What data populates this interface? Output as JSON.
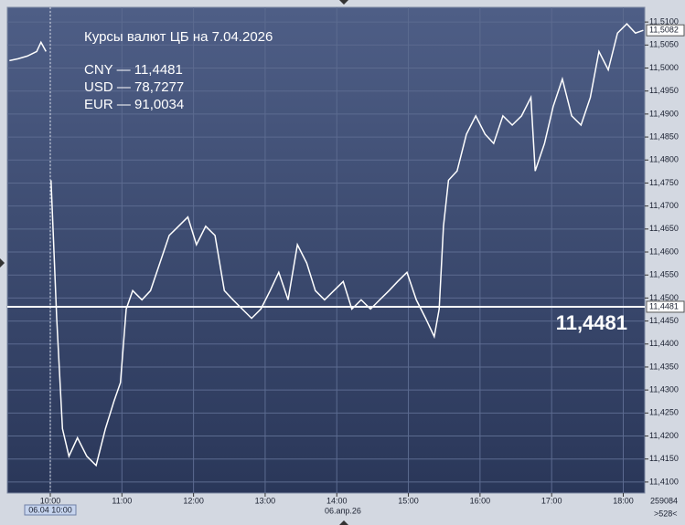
{
  "chart_data": {
    "type": "line",
    "notes": [
      "Курсы валют ЦБ на 7.04.2026",
      "CNY — 11,4481",
      "USD — 78,7277",
      "EUR — 91,0034"
    ],
    "x": [
      9.43,
      9.55,
      9.68,
      9.81,
      9.87,
      9.94,
      9.97,
      10.01,
      10.09,
      10.17,
      10.26,
      10.38,
      10.51,
      10.64,
      10.77,
      10.89,
      10.98,
      11.06,
      11.15,
      11.28,
      11.4,
      11.53,
      11.66,
      11.79,
      11.92,
      12.04,
      12.17,
      12.3,
      12.43,
      12.55,
      12.68,
      12.81,
      12.94,
      13.07,
      13.19,
      13.32,
      13.45,
      13.58,
      13.7,
      13.83,
      13.96,
      14.09,
      14.21,
      14.34,
      14.47,
      14.6,
      14.73,
      14.85,
      14.98,
      15.11,
      15.24,
      15.36,
      15.43,
      15.49,
      15.56,
      15.68,
      15.81,
      15.94,
      16.07,
      16.19,
      16.32,
      16.45,
      16.58,
      16.71,
      16.77,
      16.9,
      17.02,
      17.15,
      17.28,
      17.41,
      17.54,
      17.66,
      17.79,
      17.92,
      18.05,
      18.17,
      18.28
    ],
    "series": [
      {
        "color": "#ffffff",
        "values": [
          11.5016,
          11.502,
          11.5026,
          11.5036,
          11.5056,
          11.5036,
          null,
          11.4756,
          11.4456,
          11.4216,
          11.4156,
          11.4196,
          11.4156,
          11.4136,
          11.4216,
          11.4276,
          11.4316,
          11.4476,
          11.4516,
          11.4496,
          11.4516,
          11.4576,
          11.4636,
          11.4656,
          11.4676,
          11.4616,
          11.4656,
          11.4636,
          11.4516,
          11.4496,
          11.4476,
          11.4456,
          11.4476,
          11.4516,
          11.4556,
          11.4496,
          11.4616,
          11.4576,
          11.4516,
          11.4496,
          11.4516,
          11.4536,
          11.4476,
          11.4496,
          11.4476,
          11.4496,
          11.4516,
          11.4536,
          11.4556,
          11.4496,
          11.4456,
          11.4416,
          11.4476,
          11.4656,
          11.4756,
          11.4776,
          11.4856,
          11.4896,
          11.4856,
          11.4836,
          11.4896,
          11.4876,
          11.4896,
          11.4936,
          11.4776,
          11.4836,
          11.4916,
          11.4976,
          11.4896,
          11.4876,
          11.4936,
          11.5036,
          11.4996,
          11.5076,
          11.5096,
          11.5076,
          11.5082
        ]
      }
    ],
    "xlim": [
      9.4,
      18.3
    ],
    "xticks": [
      {
        "value": 10,
        "label": "10:00"
      },
      {
        "value": 11,
        "label": "11:00"
      },
      {
        "value": 12,
        "label": "12:00"
      },
      {
        "value": 13,
        "label": "13:00"
      },
      {
        "value": 14,
        "label": "14:00"
      },
      {
        "value": 15,
        "label": "15:00"
      },
      {
        "value": 16,
        "label": "16:00"
      },
      {
        "value": 17,
        "label": "17:00"
      },
      {
        "value": 18,
        "label": "18:00"
      }
    ],
    "ylim": [
      11.4076,
      11.5132
    ],
    "yticks": [
      {
        "value": 11.41,
        "label": "11,4100"
      },
      {
        "value": 11.415,
        "label": "11,4150"
      },
      {
        "value": 11.42,
        "label": "11,4200"
      },
      {
        "value": 11.425,
        "label": "11,4250"
      },
      {
        "value": 11.43,
        "label": "11,4300"
      },
      {
        "value": 11.435,
        "label": "11,4350"
      },
      {
        "value": 11.44,
        "label": "11,4400"
      },
      {
        "value": 11.445,
        "label": "11,4450"
      },
      {
        "value": 11.45,
        "label": "11,4500"
      },
      {
        "value": 11.455,
        "label": "11,4550"
      },
      {
        "value": 11.46,
        "label": "11,4600"
      },
      {
        "value": 11.465,
        "label": "11,4650"
      },
      {
        "value": 11.47,
        "label": "11,4700"
      },
      {
        "value": 11.475,
        "label": "11,4750"
      },
      {
        "value": 11.48,
        "label": "11,4800"
      },
      {
        "value": 11.485,
        "label": "11,4850"
      },
      {
        "value": 11.49,
        "label": "11,4900"
      },
      {
        "value": 11.495,
        "label": "11,4950"
      },
      {
        "value": 11.5,
        "label": "11,5000"
      },
      {
        "value": 11.505,
        "label": "11,5050"
      },
      {
        "value": 11.51,
        "label": "11,5100"
      }
    ],
    "grid": true,
    "hline": {
      "value": 11.4481,
      "label": "11,4481"
    },
    "last_price": {
      "value": 11.5082,
      "label": "11,5082"
    },
    "cursor": {
      "value": 10,
      "label": "06.04 10:00"
    },
    "date_label": "06.апр.26",
    "volume_label": "259084",
    "scroll_label": ">528<"
  }
}
